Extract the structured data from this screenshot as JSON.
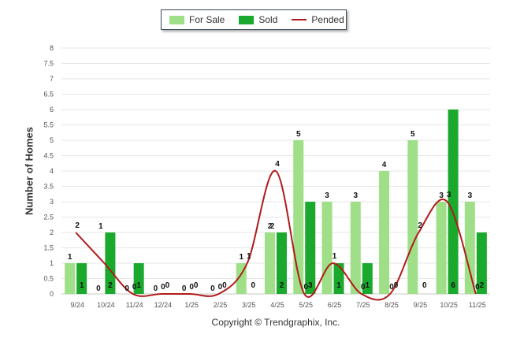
{
  "colors": {
    "for_sale": "#9fdf87",
    "sold": "#1aa82d",
    "pended": "#b11a1a",
    "grid": "#e6e6e6",
    "axis_text": "#555555"
  },
  "legend": {
    "for_sale": "For Sale",
    "sold": "Sold",
    "pended": "Pended"
  },
  "copyright": "Copyright © Trendgraphix, Inc.",
  "chart_data": {
    "type": "bar",
    "title": "",
    "xlabel": "",
    "ylabel": "Number of Homes",
    "ylim": [
      0,
      8
    ],
    "y_ticks": [
      "0",
      "0.5",
      "1",
      "1.5",
      "2",
      "2.5",
      "3",
      "3.5",
      "4",
      "4.5",
      "5",
      "5.5",
      "6",
      "6.5",
      "7",
      "7.5",
      "8"
    ],
    "grid": true,
    "legend_position": "top-center",
    "categories": [
      "9/24",
      "10/24",
      "11/24",
      "12/24",
      "1/25",
      "2/25",
      "3/25",
      "4/25",
      "5/25",
      "6/25",
      "7/25",
      "8/25",
      "9/25",
      "10/25",
      "11/25"
    ],
    "series": [
      {
        "name": "For Sale",
        "kind": "bar",
        "values": [
          1,
          0,
          0,
          0,
          0,
          0,
          1,
          2,
          5,
          3,
          3,
          4,
          5,
          3,
          3
        ]
      },
      {
        "name": "Sold",
        "kind": "bar",
        "values": [
          1,
          2,
          1,
          0,
          0,
          0,
          0,
          2,
          3,
          1,
          1,
          0,
          0,
          6,
          2
        ]
      },
      {
        "name": "Pended",
        "kind": "line",
        "values": [
          2,
          1,
          0,
          0,
          0,
          0,
          1,
          4,
          0,
          1,
          0,
          0,
          2,
          3,
          0
        ]
      }
    ],
    "bar_labels": {
      "for_sale": [
        "1",
        "0",
        "0",
        "0",
        "0",
        "0",
        "1",
        "2",
        "5",
        "3",
        "3",
        "4",
        "5",
        "3",
        "3"
      ],
      "sold_top": [
        "",
        "1",
        "",
        "",
        "",
        "",
        "",
        "2",
        "",
        "",
        "",
        "",
        "",
        "",
        ""
      ],
      "sold_base": [
        "1",
        "2",
        "1",
        "0",
        "0",
        "0",
        "0",
        "2",
        "3",
        "1",
        "1",
        "0",
        "0",
        "6",
        "2"
      ],
      "pended": [
        "2",
        "",
        "0",
        "0",
        "0",
        "0",
        "1",
        "4",
        "0",
        "1",
        "0",
        "0",
        "2",
        "3",
        "0"
      ]
    }
  }
}
